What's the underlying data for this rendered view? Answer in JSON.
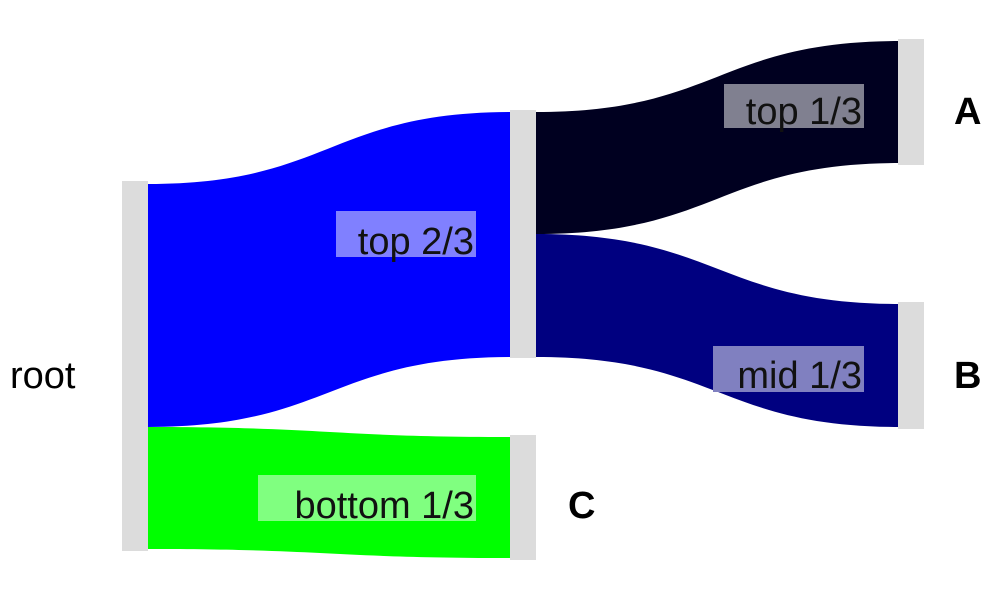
{
  "sankey": {
    "nodes": {
      "root": {
        "label": "root",
        "color": "#dcdcdc"
      },
      "mid": {
        "label": "",
        "color": "#dcdcdc"
      },
      "A": {
        "label": "A",
        "color": "#dcdcdc"
      },
      "B": {
        "label": "B",
        "color": "#dcdcdc"
      },
      "C": {
        "label": "C",
        "color": "#dcdcdc"
      }
    },
    "links": [
      {
        "source": "root",
        "target": "mid",
        "label": "top 2/3",
        "value": 2,
        "color": "#0000ff",
        "label_bg": "#8080ff"
      },
      {
        "source": "root",
        "target": "C",
        "label": "bottom 1/3",
        "value": 1,
        "color": "#00ff00",
        "label_bg": "#80ff80"
      },
      {
        "source": "mid",
        "target": "A",
        "label": "top 1/3",
        "value": 1,
        "color": "#000020",
        "label_bg": "#808090"
      },
      {
        "source": "mid",
        "target": "B",
        "label": "mid 1/3",
        "value": 1,
        "color": "#000080",
        "label_bg": "#8080c0"
      }
    ]
  }
}
